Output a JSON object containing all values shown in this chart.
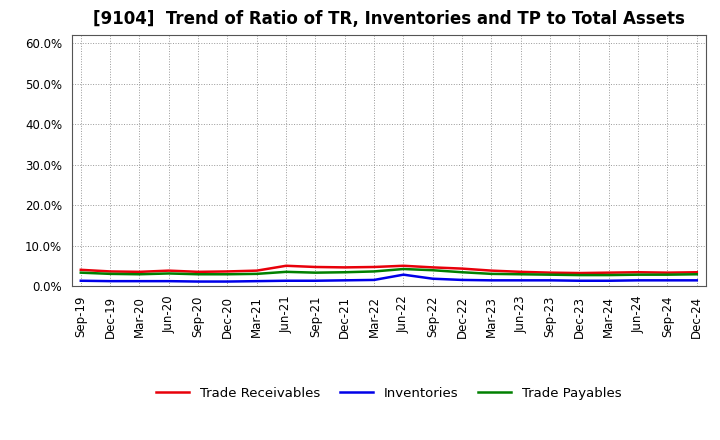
{
  "title": "[9104]  Trend of Ratio of TR, Inventories and TP to Total Assets",
  "labels": [
    "Sep-19",
    "Dec-19",
    "Mar-20",
    "Jun-20",
    "Sep-20",
    "Dec-20",
    "Mar-21",
    "Jun-21",
    "Sep-21",
    "Dec-21",
    "Mar-22",
    "Jun-22",
    "Sep-22",
    "Dec-22",
    "Mar-23",
    "Jun-23",
    "Sep-23",
    "Dec-23",
    "Mar-24",
    "Jun-24",
    "Sep-24",
    "Dec-24"
  ],
  "trade_receivables": [
    0.04,
    0.036,
    0.035,
    0.038,
    0.035,
    0.036,
    0.038,
    0.05,
    0.047,
    0.046,
    0.047,
    0.05,
    0.046,
    0.043,
    0.038,
    0.035,
    0.033,
    0.032,
    0.033,
    0.034,
    0.033,
    0.034
  ],
  "inventories": [
    0.013,
    0.012,
    0.012,
    0.012,
    0.011,
    0.011,
    0.012,
    0.013,
    0.013,
    0.014,
    0.015,
    0.028,
    0.018,
    0.015,
    0.014,
    0.014,
    0.014,
    0.013,
    0.013,
    0.014,
    0.014,
    0.014
  ],
  "trade_payables": [
    0.033,
    0.03,
    0.029,
    0.031,
    0.029,
    0.029,
    0.03,
    0.035,
    0.033,
    0.034,
    0.036,
    0.042,
    0.039,
    0.034,
    0.03,
    0.029,
    0.028,
    0.027,
    0.027,
    0.028,
    0.028,
    0.029
  ],
  "tr_color": "#e8000a",
  "inv_color": "#0000e8",
  "tp_color": "#008000",
  "ylim": [
    0.0,
    0.62
  ],
  "yticks": [
    0.0,
    0.1,
    0.2,
    0.3,
    0.4,
    0.5,
    0.6
  ],
  "legend_labels": [
    "Trade Receivables",
    "Inventories",
    "Trade Payables"
  ],
  "bg_color": "#ffffff",
  "grid_color": "#999999",
  "linewidth": 1.8,
  "title_fontsize": 12,
  "tick_fontsize": 8.5,
  "legend_fontsize": 9.5
}
